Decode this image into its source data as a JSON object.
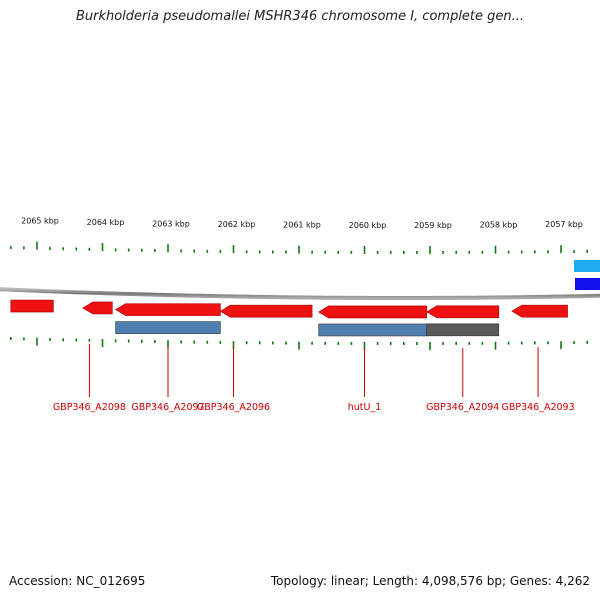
{
  "title": "Burkholderia pseudomallei MSHR346 chromosome I, complete gen...",
  "footer": {
    "accession": "Accession: NC_012695",
    "stats": "Topology: linear; Length: 4,098,576 bp; Genes: 4,262"
  },
  "colors": {
    "gene_forward": "#ee1111",
    "cds_steelblue": "#4f7fb0",
    "cds_gray": "#5a5a5a",
    "tick_green": "#117711",
    "backbone": "#888888",
    "label_red": "#cc0000",
    "edge_cyan": "#22aaee",
    "edge_blue": "#1111ee"
  },
  "scale": {
    "unit": "kbp",
    "labels": [
      "2065 kbp",
      "2064 kbp",
      "2063 kbp",
      "2062 kbp",
      "2061 kbp",
      "2060 kbp",
      "2059 kbp",
      "2058 kbp",
      "2057 kbp"
    ]
  },
  "features": [
    {
      "kind": "gene",
      "track": "upper",
      "start": 2065.4,
      "end": 2064.75,
      "color": "gene_forward"
    },
    {
      "kind": "gene",
      "track": "upper",
      "start": 2064.3,
      "end": 2063.85,
      "color": "gene_forward",
      "arrow": "left"
    },
    {
      "kind": "gene",
      "track": "upper",
      "start": 2063.8,
      "end": 2062.2,
      "color": "gene_forward",
      "arrow": "left"
    },
    {
      "kind": "gene",
      "track": "upper",
      "start": 2062.2,
      "end": 2060.8,
      "color": "gene_forward",
      "arrow": "left"
    },
    {
      "kind": "gene",
      "track": "upper",
      "start": 2060.7,
      "end": 2059.05,
      "color": "gene_forward",
      "arrow": "left"
    },
    {
      "kind": "gene",
      "track": "upper",
      "start": 2059.05,
      "end": 2057.95,
      "color": "gene_forward",
      "arrow": "left"
    },
    {
      "kind": "gene",
      "track": "upper",
      "start": 2057.75,
      "end": 2056.9,
      "color": "gene_forward",
      "arrow": "left"
    },
    {
      "kind": "cds",
      "track": "lower",
      "start": 2063.8,
      "end": 2062.2,
      "color": "cds_steelblue"
    },
    {
      "kind": "cds",
      "track": "lower",
      "start": 2060.7,
      "end": 2059.05,
      "color": "cds_steelblue"
    },
    {
      "kind": "cds",
      "track": "lower",
      "start": 2059.05,
      "end": 2057.95,
      "color": "cds_gray"
    }
  ],
  "gene_labels": [
    {
      "text": "GBP346_A2098",
      "at": 2064.2
    },
    {
      "text": "GBP346_A2097",
      "at": 2063.0
    },
    {
      "text": "GBP346_A2096",
      "at": 2062.0
    },
    {
      "text": "hutU_1",
      "at": 2060.0
    },
    {
      "text": "GBP346_A2094",
      "at": 2058.5
    },
    {
      "text": "GBP346_A2093",
      "at": 2057.35
    }
  ]
}
